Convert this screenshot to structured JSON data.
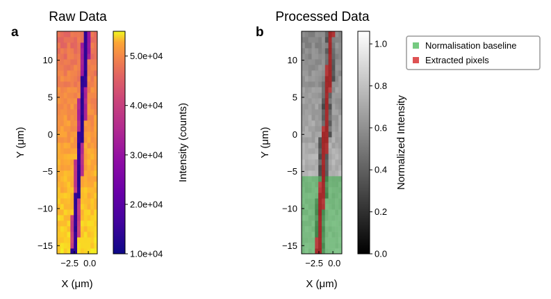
{
  "chart_data": [
    {
      "panel": "a",
      "type": "heatmap",
      "title": "Raw Data",
      "xlabel": "X (μm)",
      "ylabel": "Y (μm)",
      "xlim": [
        -5.6,
        1.6
      ],
      "ylim": [
        -16.1,
        13.9
      ],
      "xticks": [
        -2.5,
        0.0
      ],
      "xtick_labels": [
        "−2.5",
        "0.0"
      ],
      "yticks": [
        -15,
        -10,
        -5,
        0,
        5,
        10
      ],
      "ytick_labels": [
        "−15",
        "−10",
        "−5",
        "0",
        "5",
        "10"
      ],
      "colormap": "plasma",
      "colorbar": {
        "label": "Intensity (counts)",
        "range": [
          10000,
          55000
        ],
        "ticks": [
          10000,
          20000,
          30000,
          40000,
          50000
        ],
        "tick_labels": [
          "1.0e+04",
          "2.0e+04",
          "3.0e+04",
          "4.0e+04",
          "5.0e+04"
        ]
      },
      "feature": {
        "description_values": "dark stripe of minimum intensity",
        "x_at_top": -0.3,
        "x_at_bottom": -2.6,
        "y_top": 13.9,
        "y_bottom": -16.1,
        "stripe_intensity": 12000,
        "background_top": 38000,
        "background_bottom": 52000
      }
    },
    {
      "panel": "b",
      "type": "heatmap",
      "title": "Processed Data",
      "xlabel": "X (μm)",
      "ylabel": "Y (μm)",
      "xlim": [
        -5.6,
        1.6
      ],
      "ylim": [
        -16.1,
        13.9
      ],
      "xticks": [
        -2.5,
        0.0
      ],
      "xtick_labels": [
        "−2.5",
        "0.0"
      ],
      "yticks": [
        -15,
        -10,
        -5,
        0,
        5,
        10
      ],
      "ytick_labels": [
        "−15",
        "−10",
        "−5",
        "0",
        "5",
        "10"
      ],
      "colormap": "gray",
      "colorbar": {
        "label": "Normalized Intensity",
        "range": [
          0.0,
          1.06
        ],
        "ticks": [
          0.0,
          0.2,
          0.4,
          0.6,
          0.8,
          1.0
        ],
        "tick_labels": [
          "0.0",
          "0.2",
          "0.4",
          "0.6",
          "0.8",
          "1.0"
        ]
      },
      "baseline_region": {
        "y_max": -5.5,
        "y_min": -16.1
      },
      "legend": {
        "location": "upper right, outside",
        "entries": [
          {
            "label": "Normalisation baseline",
            "color": "#3cb44b"
          },
          {
            "label": "Extracted pixels",
            "color": "#d62728"
          }
        ]
      }
    }
  ],
  "colors": {
    "baseline": "#3cb44b",
    "extracted": "#d62728"
  }
}
